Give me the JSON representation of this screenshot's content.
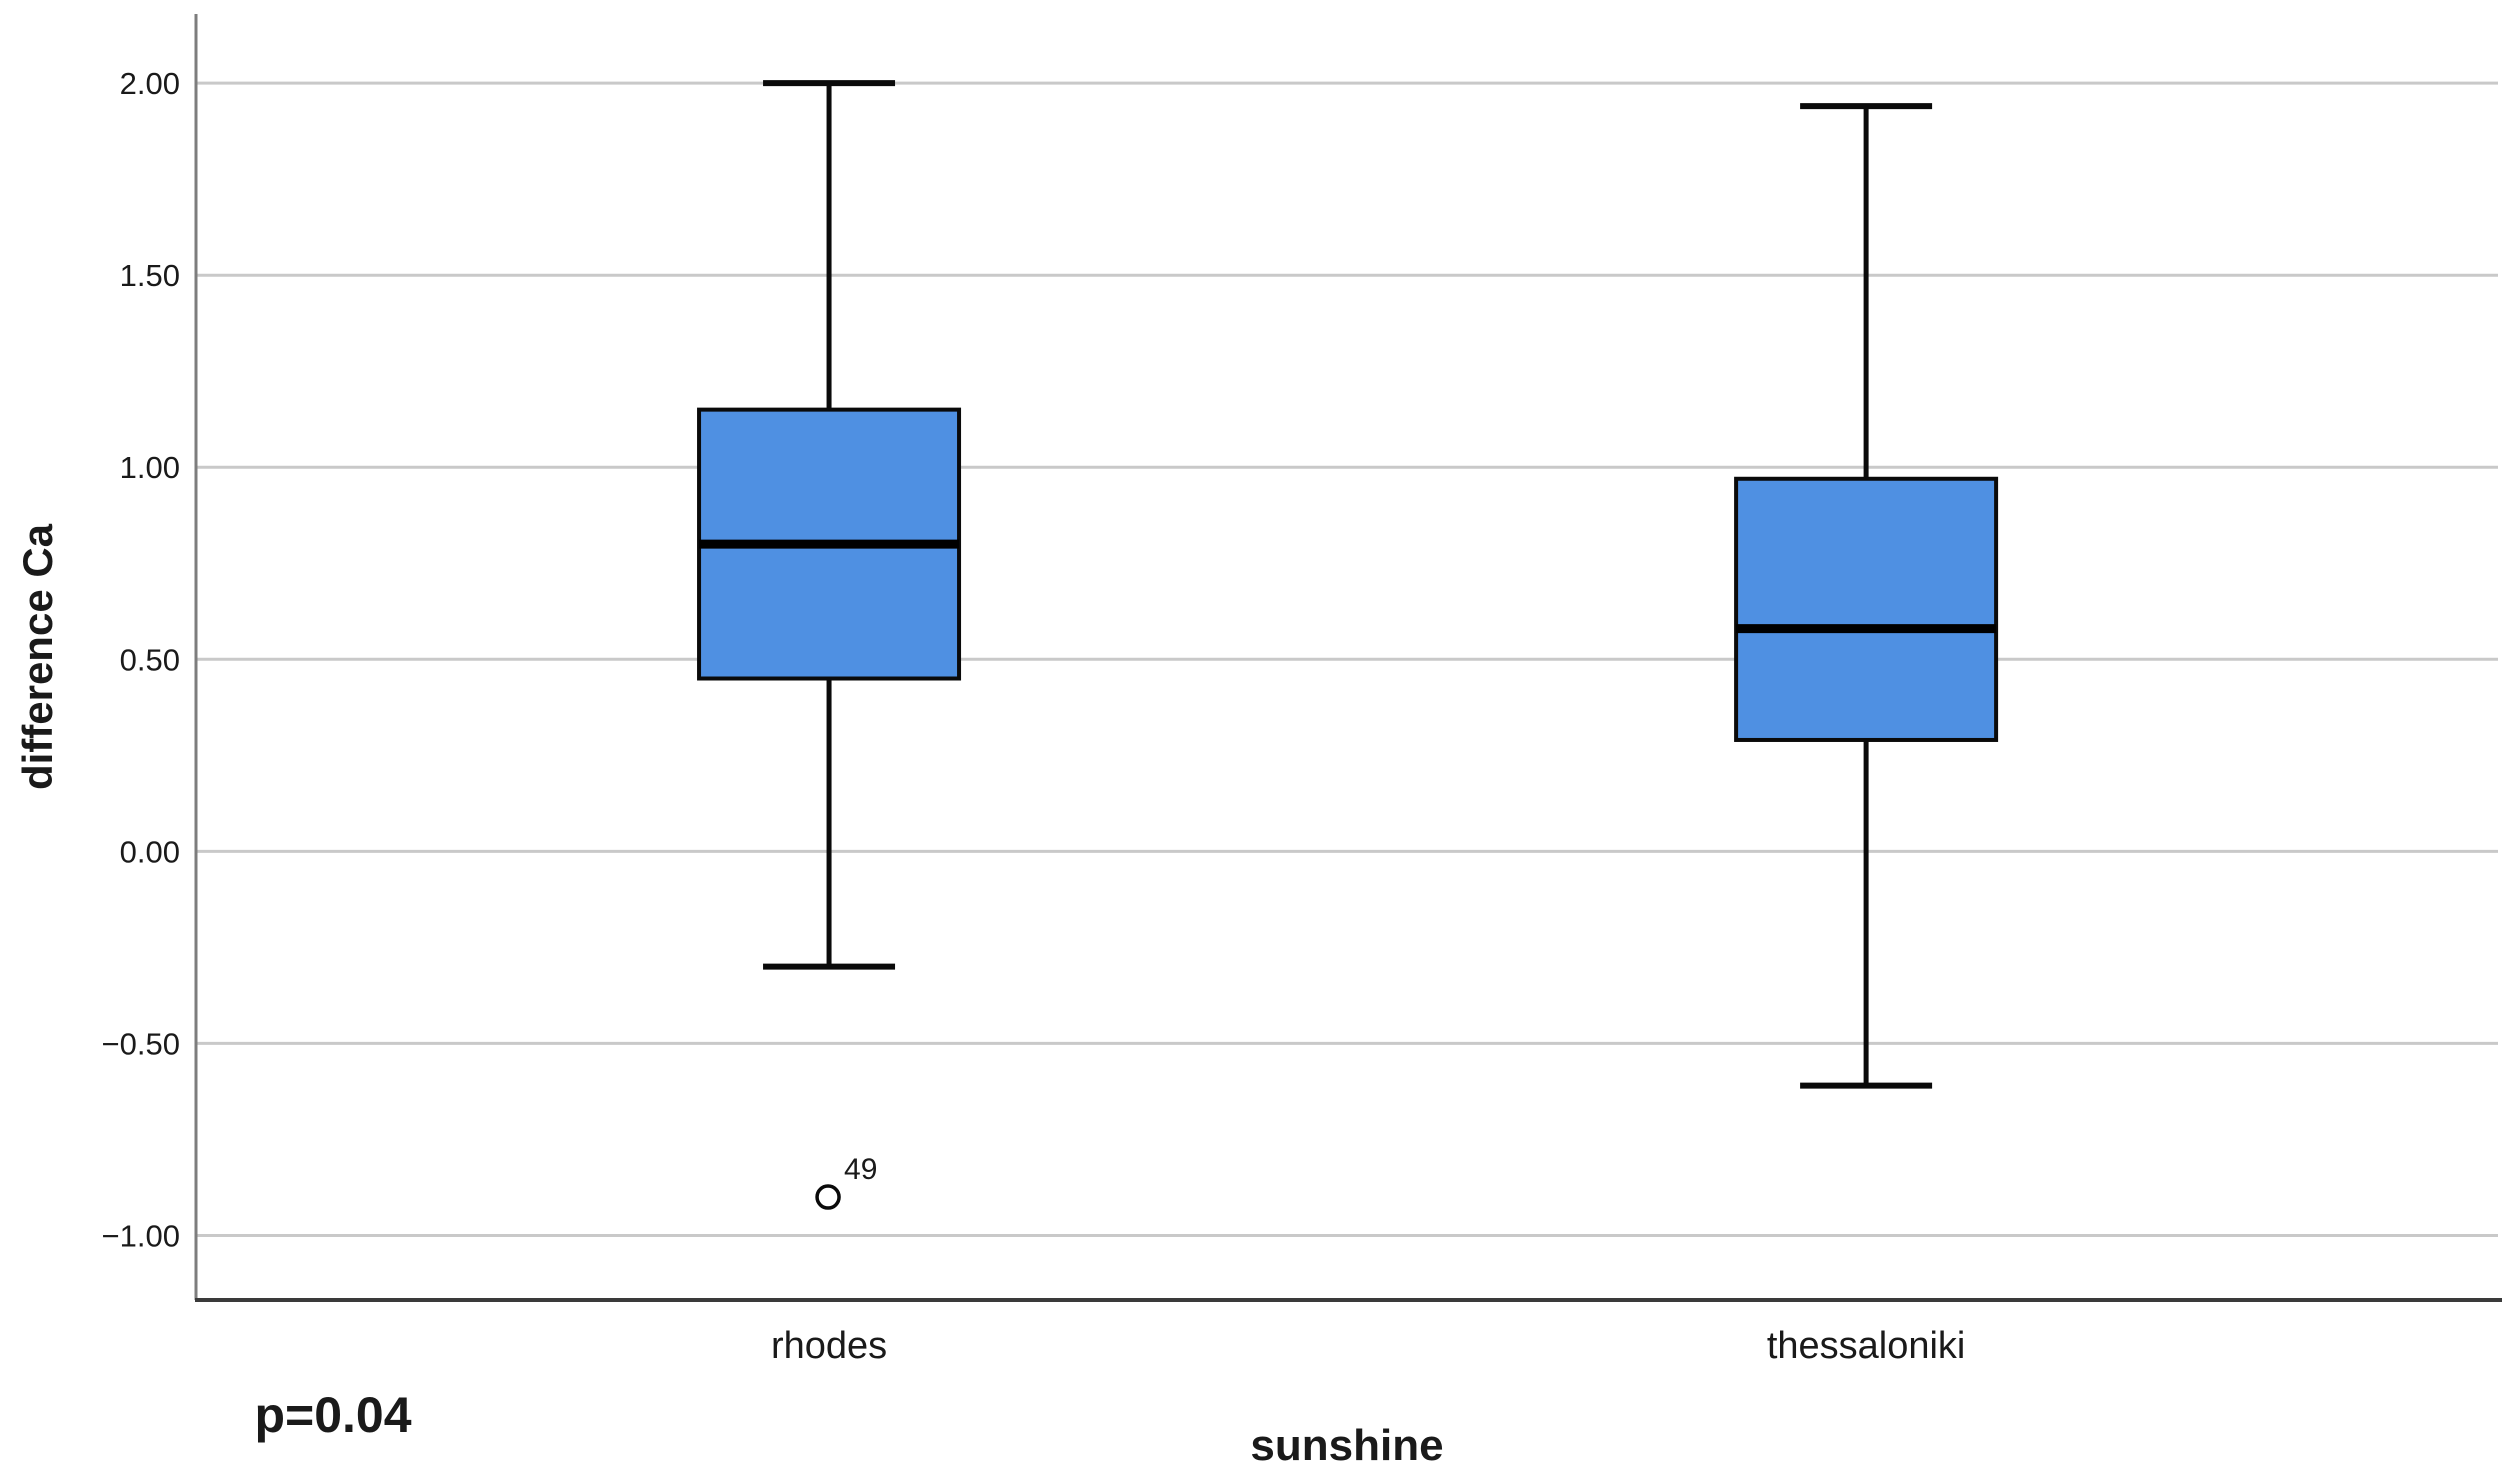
{
  "chart": {
    "y_axis_title": "difference Ca",
    "x_axis_title": "sunshine",
    "p_annotation": "p=0.04"
  },
  "chart_data": {
    "type": "boxplot",
    "title": "",
    "xlabel": "sunshine",
    "ylabel": "difference Ca",
    "annotation": "p=0.04",
    "grid": "horizontal-only",
    "legend": "none",
    "ylim": [
      -1.168,
      2.18
    ],
    "yticks": [
      {
        "value": 2.0,
        "label": "2.00"
      },
      {
        "value": 1.5,
        "label": "1.50"
      },
      {
        "value": 1.0,
        "label": "1.00"
      },
      {
        "value": 0.5,
        "label": "0.50"
      },
      {
        "value": 0.0,
        "label": "0.00"
      },
      {
        "value": -0.5,
        "label": "−0.50"
      },
      {
        "value": -1.0,
        "label": "−1.00"
      }
    ],
    "categories": [
      "rhodes",
      "thessaloniki"
    ],
    "series": [
      {
        "name": "rhodes",
        "whisker_low": -0.3,
        "q1": 0.45,
        "median": 0.8,
        "q3": 1.15,
        "whisker_high": 2.0,
        "outliers": [
          {
            "label": "49",
            "value": -0.9
          }
        ]
      },
      {
        "name": "thessaloniki",
        "whisker_low": -0.61,
        "q1": 0.29,
        "median": 0.58,
        "q3": 0.97,
        "whisker_high": 1.94,
        "outliers": []
      }
    ],
    "colors": {
      "box_fill": "#4F90E2",
      "box_stroke": "#0a0a0a",
      "median": "#000000",
      "whisker": "#0a0a0a",
      "gridline": "#c9c9c9",
      "y_axis_line": "#7d7d7d",
      "x_axis_line": "#3a3a3a",
      "text": "#1a1a1a",
      "outlier_fill": "#ffffff"
    }
  }
}
